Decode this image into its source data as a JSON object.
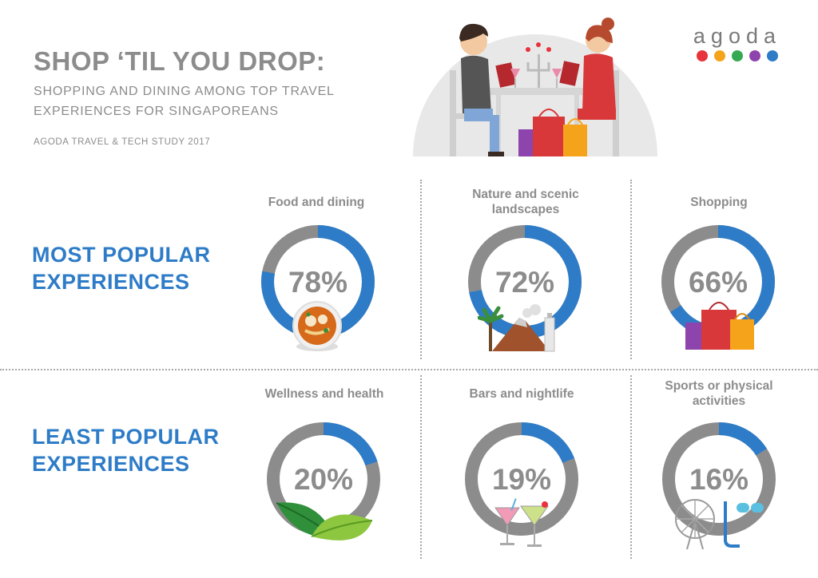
{
  "header": {
    "title": "SHOP ‘TIL YOU DROP:",
    "subtitle_line1": "SHOPPING AND DINING AMONG TOP TRAVEL",
    "subtitle_line2": "EXPERIENCES FOR SINGAPOREANS",
    "source": "AGODA TRAVEL & TECH STUDY 2017"
  },
  "logo": {
    "text": "agoda",
    "dot_colors": [
      "#e8323c",
      "#f5a31a",
      "#34a853",
      "#8e44ad",
      "#2e7cc7"
    ]
  },
  "sections": {
    "most": {
      "line1": "MOST POPULAR",
      "line2": "EXPERIENCES"
    },
    "least": {
      "line1": "LEAST POPULAR",
      "line2": "EXPERIENCES"
    }
  },
  "colors": {
    "accent_blue": "#2e7cc7",
    "ring_grey": "#8c8c8c",
    "text_grey": "#8c8c8c"
  },
  "chart_data": {
    "type": "donut",
    "series": [
      {
        "name": "Food and dining",
        "value": 78,
        "label": "78%",
        "group": "most",
        "icon": "food-bowl-icon"
      },
      {
        "name": "Nature and scenic landscapes",
        "value": 72,
        "label": "72%",
        "group": "most",
        "icon": "volcano-landscape-icon"
      },
      {
        "name": "Shopping",
        "value": 66,
        "label": "66%",
        "group": "most",
        "icon": "shopping-bags-icon"
      },
      {
        "name": "Wellness and health",
        "value": 20,
        "label": "20%",
        "group": "least",
        "icon": "leaves-icon"
      },
      {
        "name": "Bars and nightlife",
        "value": 19,
        "label": "19%",
        "group": "least",
        "icon": "cocktails-icon"
      },
      {
        "name": "Sports or physical activities",
        "value": 16,
        "label": "16%",
        "group": "least",
        "icon": "ferris-wheel-goggles-icon"
      }
    ],
    "unit": "%",
    "max": 100
  }
}
